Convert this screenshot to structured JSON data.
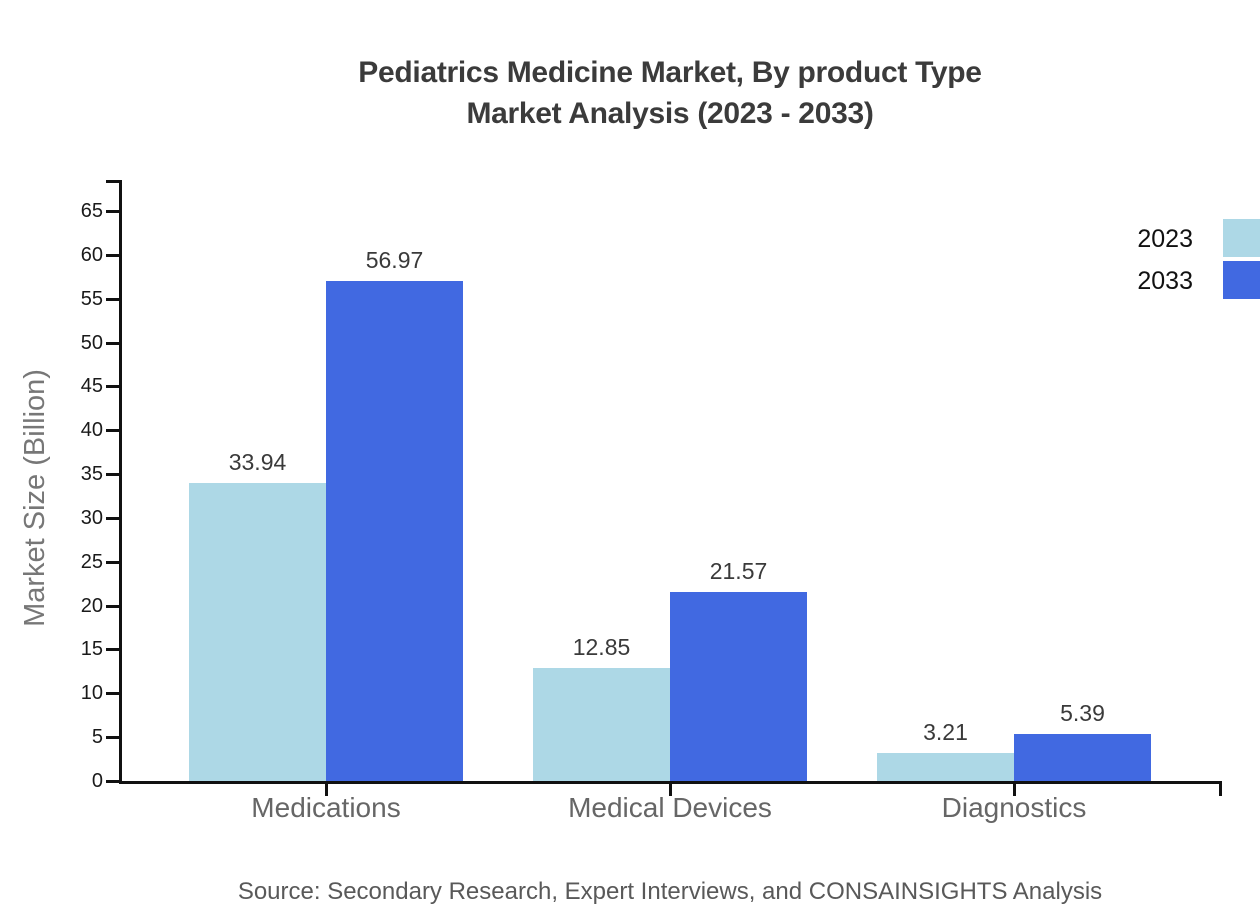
{
  "title": {
    "line1": "Pediatrics Medicine Market, By product Type",
    "line2": "Market Analysis (2023 - 2033)"
  },
  "source": "Source: Secondary Research, Expert Interviews, and CONSAINSIGHTS Analysis",
  "colors": {
    "series_2023": "#ADD8E6",
    "series_2033": "#4169E1",
    "axis": "#111111",
    "title_text": "#3b3b3b",
    "category_text": "#666666",
    "source_text": "#595959"
  },
  "chart_data": {
    "type": "bar",
    "title": "Pediatrics Medicine Market, By product Type Market Analysis (2023 - 2033)",
    "categories": [
      "Medications",
      "Medical Devices",
      "Diagnostics"
    ],
    "series": [
      {
        "name": "2023",
        "color": "#ADD8E6",
        "values": [
          33.94,
          12.85,
          3.21
        ]
      },
      {
        "name": "2033",
        "color": "#4169E1",
        "values": [
          56.97,
          21.57,
          5.39
        ]
      }
    ],
    "xlabel": "",
    "ylabel": "Market Size (Billion)",
    "ylim": [
      0,
      68.5
    ],
    "yticks": [
      0,
      5,
      10,
      15,
      20,
      25,
      30,
      35,
      40,
      45,
      50,
      55,
      60,
      65
    ],
    "grid": false,
    "legend_position": "top-right",
    "value_labels": true,
    "value_label_format": "2dp"
  }
}
